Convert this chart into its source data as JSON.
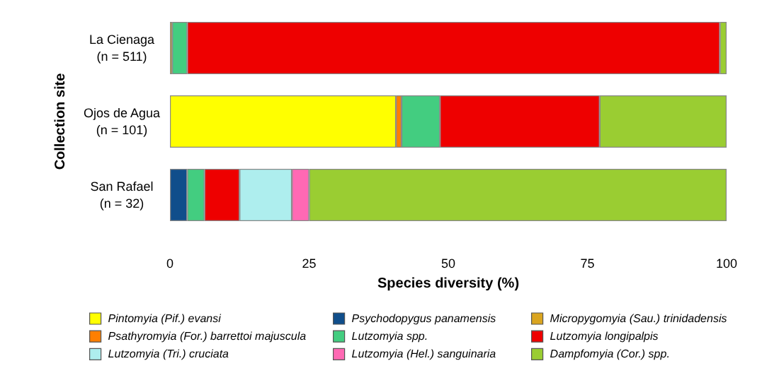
{
  "chart_data": {
    "type": "bar",
    "orientation": "horizontal",
    "stacked": true,
    "xlabel": "Species diversity (%)",
    "ylabel": "Collection site",
    "categories": [
      "La Cienaga\n(n = 511)",
      "Ojos de Agua\n(n = 101)",
      "San Rafael\n(n = 32)"
    ],
    "xlim": [
      0,
      100
    ],
    "xticks": [
      0,
      25,
      50,
      75,
      100
    ],
    "grid": false,
    "legend": "bottom",
    "series": [
      {
        "name": "Pintomyia (Pif.) evansi",
        "color": "#ffff00",
        "values": [
          null,
          40.6,
          null
        ]
      },
      {
        "name": "Psychodopygus panamensis",
        "color": "#104e8b",
        "values": [
          null,
          null,
          3.1
        ]
      },
      {
        "name": "Micropygomyia (Sau.) trinidadensis",
        "color": "#daa520",
        "values": [
          0.4,
          null,
          null
        ]
      },
      {
        "name": "Psathyromyia (For.) barrettoi majuscula",
        "color": "#ff7f00",
        "values": [
          null,
          1.0,
          null
        ]
      },
      {
        "name": "Lutzomyia spp.",
        "color": "#43cd80",
        "values": [
          2.7,
          6.9,
          3.1
        ]
      },
      {
        "name": "Lutzomyia longipalpis",
        "color": "#ee0000",
        "values": [
          95.7,
          28.7,
          6.3
        ]
      },
      {
        "name": "Lutzomyia (Tri.) cruciata",
        "color": "#aeeeee",
        "values": [
          null,
          null,
          9.4
        ]
      },
      {
        "name": "Lutzomyia (Hel.) sanguinaria",
        "color": "#ff69b4",
        "values": [
          null,
          null,
          3.1
        ]
      },
      {
        "name": "Dampfomyia (Cor.) spp.",
        "color": "#9acd32",
        "values": [
          1.2,
          22.8,
          75.0
        ]
      }
    ]
  }
}
